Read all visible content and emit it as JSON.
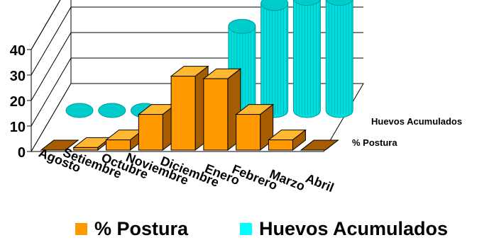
{
  "chart_data": {
    "type": "bar",
    "variant": "3d-depth-rows",
    "categories": [
      "Agosto",
      "Setiembre",
      "Octubre",
      "Noviembre",
      "Diciembre",
      "Enero",
      "Febrero",
      "Marzo",
      "Abril"
    ],
    "series": [
      {
        "name": "% Postura",
        "shape": "box",
        "color": "#FF9900",
        "values": [
          0,
          1,
          4,
          14,
          29,
          28,
          14,
          4,
          0
        ]
      },
      {
        "name": "Huevos Acumulados",
        "shape": "cylinder",
        "color": "#00E5E5",
        "values": [
          0,
          0,
          0,
          0,
          0,
          33,
          42,
          44,
          44
        ]
      }
    ],
    "yticks": [
      "0",
      "10",
      "20",
      "30",
      "40"
    ],
    "ylim": [
      0,
      50
    ],
    "grid": true,
    "legend_position": "bottom",
    "colors": {
      "box_front": "#FF9900",
      "box_top": "#FFB830",
      "box_side": "#A65C00",
      "cyl_body": "#00E0E0",
      "cyl_dark": "#009A9A",
      "cyl_top": "#00CCCC"
    }
  }
}
